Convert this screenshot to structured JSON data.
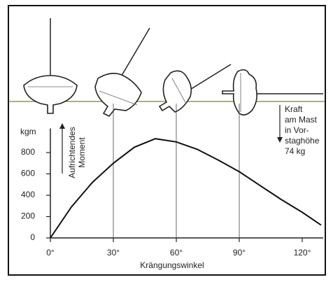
{
  "chart_data": {
    "type": "line",
    "x_label": "Krängungswinkel",
    "y_label": "kgm",
    "annotations": [
      {
        "lines": [
          "Aufrichtendes",
          "Moment"
        ]
      },
      {
        "lines": [
          "Kraft",
          "am Mast",
          "in Vor-",
          "staghöhe",
          "74 kg"
        ]
      }
    ],
    "x": [
      0,
      10,
      20,
      30,
      40,
      50,
      60,
      70,
      80,
      90,
      100,
      110,
      120,
      129
    ],
    "series": [
      {
        "color": "#111111",
        "values": [
          0,
          290,
          520,
          700,
          850,
          930,
          900,
          830,
          730,
          620,
          490,
          360,
          240,
          120
        ]
      }
    ],
    "xlim": [
      0,
      130
    ],
    "ylim": [
      0,
      1000
    ],
    "xticks": [
      {
        "value": 0,
        "label": "0°"
      },
      {
        "value": 30,
        "label": "30°"
      },
      {
        "value": 60,
        "label": "60°"
      },
      {
        "value": 90,
        "label": "90°"
      },
      {
        "value": 120,
        "label": "120°"
      }
    ],
    "yticks": [
      0,
      200,
      400,
      600,
      800
    ],
    "grid": true
  }
}
